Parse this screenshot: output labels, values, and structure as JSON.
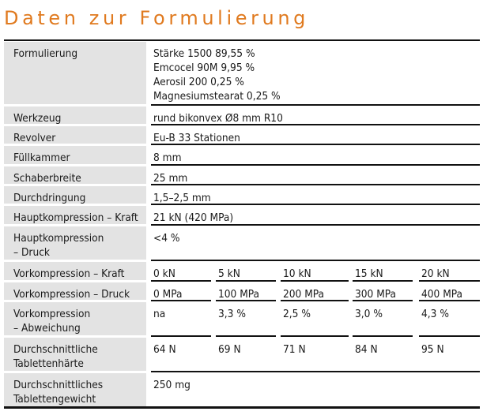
{
  "title": "Daten zur Formulierung",
  "rows": {
    "formulierung": {
      "label": "Formulierung",
      "lines": [
        "Stärke 1500 89,55 %",
        "Emcocel 90M 9,95 %",
        "Aerosil 200 0,25 %",
        "Magnesiumstearat 0,25 %"
      ]
    },
    "werkzeug": {
      "label": "Werkzeug",
      "value": "rund bikonvex Ø8 mm R10"
    },
    "revolver": {
      "label": "Revolver",
      "value": "Eu-B 33 Stationen"
    },
    "fuellkammer": {
      "label": "Füllkammer",
      "value": "8 mm"
    },
    "schaberbreite": {
      "label": "Schaberbreite",
      "value": "25 mm"
    },
    "durchdringung": {
      "label": "Durchdringung",
      "value": "1,5–2,5 mm"
    },
    "hauptkompression_kraft": {
      "label": "Hauptkompression – Kraft",
      "value": "21 kN (420 MPa)"
    },
    "hauptkompression_druck": {
      "label_lines": [
        "Hauptkompression",
        "– Druck"
      ],
      "value": "<4 %"
    },
    "vorkompression_kraft": {
      "label": "Vorkompression – Kraft",
      "values": [
        "0 kN",
        "5 kN",
        "10 kN",
        "15 kN",
        "20 kN"
      ]
    },
    "vorkompression_druck": {
      "label": "Vorkompression – Druck",
      "values": [
        "0 MPa",
        "100 MPa",
        "200 MPa",
        "300 MPa",
        "400 MPa"
      ]
    },
    "vorkompression_abweichung": {
      "label_lines": [
        "Vorkompression",
        "– Abweichung"
      ],
      "values": [
        "na",
        "3,3 %",
        "2,5 %",
        "3,0 %",
        "4,3 %"
      ]
    },
    "tablettenhaerte": {
      "label_lines": [
        "Durchschnittliche",
        "Tablettenhärte"
      ],
      "values": [
        "64 N",
        "69 N",
        "71 N",
        "84 N",
        "95 N"
      ]
    },
    "tablettengewicht": {
      "label_lines": [
        "Durchschnittliches",
        "Tablettengewicht"
      ],
      "value": "250 mg"
    }
  }
}
